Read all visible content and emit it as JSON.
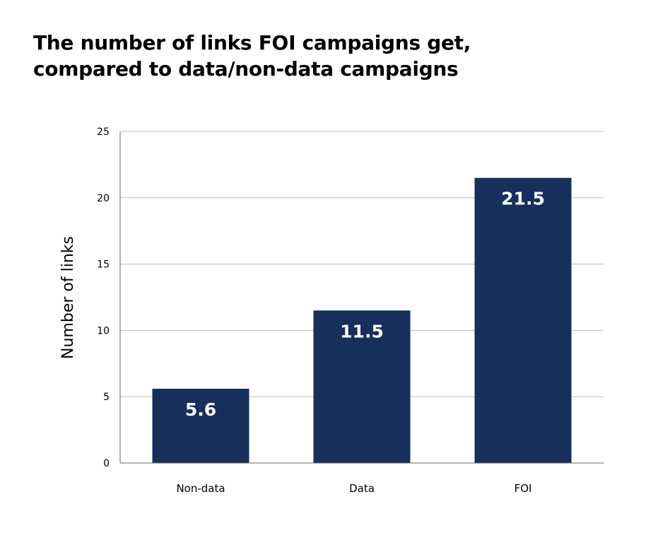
{
  "chart_data": {
    "type": "bar",
    "title_lines": [
      "The number of links FOI campaigns get,",
      "compared to data/non-data campaigns"
    ],
    "categories": [
      "Non-data",
      "Data",
      "FOI"
    ],
    "values": [
      5.6,
      11.5,
      21.5
    ],
    "value_labels": [
      "5.6",
      "11.5",
      "21.5"
    ],
    "xlabel": "",
    "ylabel": "Number of links",
    "ylim": [
      0,
      25
    ],
    "yticks": [
      0,
      5,
      10,
      15,
      20,
      25
    ],
    "grid": true,
    "legend": "none",
    "colors": {
      "bar": "#162f5b",
      "grid": "#bdbdbd",
      "axis": "#666666",
      "bar_label": "#ffffff",
      "text": "#000000"
    }
  }
}
